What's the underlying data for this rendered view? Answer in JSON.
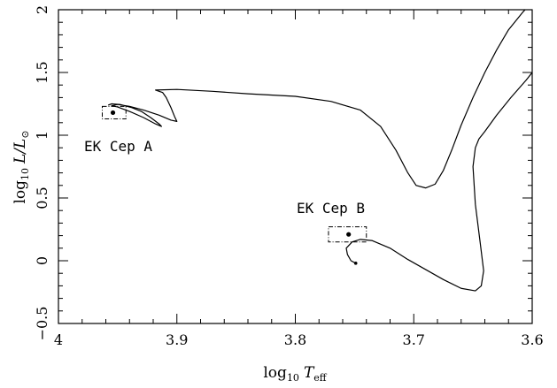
{
  "chart_data": {
    "type": "line",
    "x_axis": {
      "range": [
        4.0,
        3.6
      ],
      "reversed": true,
      "ticks": [
        4.0,
        3.9,
        3.8,
        3.7,
        3.6
      ],
      "tick_labels": [
        "4",
        "3.9",
        "3.8",
        "3.7",
        "3.6"
      ],
      "minor_step": 0.02,
      "label_main": "log",
      "label_sub": "10",
      "label_var": "T",
      "label_var_sub": "eff"
    },
    "y_axis": {
      "range": [
        -0.5,
        2.0
      ],
      "ticks": [
        -0.5,
        0,
        0.5,
        1.0,
        1.5,
        2.0
      ],
      "tick_labels": [
        "−0.5",
        "0",
        "0.5",
        "1",
        "1.5",
        "2"
      ],
      "minor_step": 0.1,
      "label_main": "log",
      "label_sub": "10",
      "label_var": "L/L",
      "label_var_sub": "⊙"
    },
    "grid": false,
    "series": [
      {
        "points": [
          [
            3.958,
            1.24
          ],
          [
            3.955,
            1.25
          ],
          [
            3.948,
            1.245
          ],
          [
            3.938,
            1.22
          ],
          [
            3.93,
            1.19
          ],
          [
            3.922,
            1.14
          ],
          [
            3.915,
            1.09
          ],
          [
            3.913,
            1.07
          ],
          [
            3.918,
            1.09
          ],
          [
            3.928,
            1.14
          ],
          [
            3.94,
            1.19
          ],
          [
            3.95,
            1.225
          ],
          [
            3.955,
            1.235
          ],
          [
            3.95,
            1.245
          ],
          [
            3.94,
            1.23
          ],
          [
            3.928,
            1.2
          ],
          [
            3.915,
            1.16
          ],
          [
            3.905,
            1.12
          ],
          [
            3.9,
            1.11
          ],
          [
            3.902,
            1.15
          ],
          [
            3.905,
            1.22
          ],
          [
            3.909,
            1.3
          ],
          [
            3.912,
            1.34
          ],
          [
            3.918,
            1.36
          ],
          [
            3.9,
            1.365
          ],
          [
            3.87,
            1.35
          ],
          [
            3.84,
            1.33
          ],
          [
            3.8,
            1.31
          ],
          [
            3.77,
            1.27
          ],
          [
            3.745,
            1.2
          ],
          [
            3.728,
            1.07
          ],
          [
            3.715,
            0.88
          ],
          [
            3.705,
            0.7
          ],
          [
            3.698,
            0.6
          ],
          [
            3.69,
            0.58
          ],
          [
            3.682,
            0.61
          ],
          [
            3.675,
            0.72
          ],
          [
            3.668,
            0.88
          ],
          [
            3.66,
            1.08
          ],
          [
            3.65,
            1.3
          ],
          [
            3.64,
            1.5
          ],
          [
            3.63,
            1.68
          ],
          [
            3.62,
            1.84
          ],
          [
            3.608,
            1.98
          ],
          [
            3.6,
            2.06
          ]
        ]
      },
      {
        "points": [
          [
            3.749,
            -0.02
          ],
          [
            3.753,
            0.0
          ],
          [
            3.756,
            0.05
          ],
          [
            3.757,
            0.1
          ],
          [
            3.752,
            0.15
          ],
          [
            3.745,
            0.17
          ],
          [
            3.735,
            0.16
          ],
          [
            3.72,
            0.1
          ],
          [
            3.705,
            0.01
          ],
          [
            3.69,
            -0.07
          ],
          [
            3.675,
            -0.15
          ],
          [
            3.66,
            -0.22
          ],
          [
            3.648,
            -0.24
          ],
          [
            3.643,
            -0.2
          ],
          [
            3.641,
            -0.08
          ],
          [
            3.644,
            0.15
          ],
          [
            3.648,
            0.45
          ],
          [
            3.65,
            0.75
          ],
          [
            3.648,
            0.9
          ],
          [
            3.645,
            0.97
          ],
          [
            3.64,
            1.03
          ],
          [
            3.63,
            1.16
          ],
          [
            3.618,
            1.3
          ],
          [
            3.605,
            1.44
          ],
          [
            3.6,
            1.5
          ]
        ]
      }
    ],
    "observations": [
      {
        "label": "EK Cep A",
        "x": 3.954,
        "y": 1.18,
        "box_x": [
          3.963,
          3.943
        ],
        "box_y": [
          1.13,
          1.23
        ]
      },
      {
        "label": "EK Cep B",
        "x": 3.755,
        "y": 0.21,
        "box_x": [
          3.772,
          3.74
        ],
        "box_y": [
          0.15,
          0.27
        ]
      }
    ]
  }
}
